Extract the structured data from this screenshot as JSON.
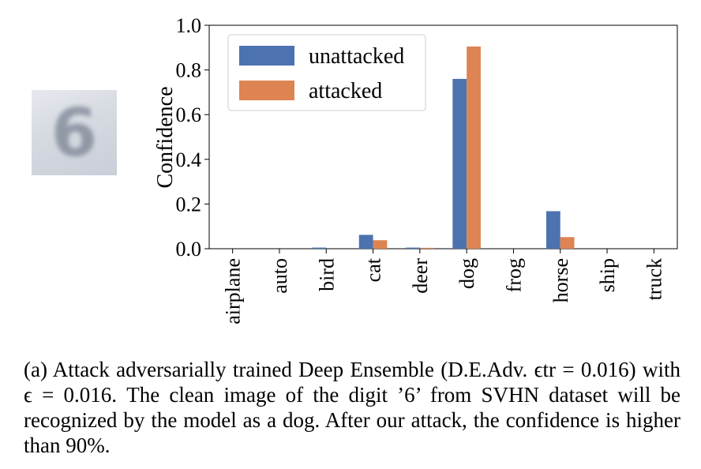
{
  "caption": "(a) Attack adversarially trained Deep Ensemble (D.E.Adv. ϵtr = 0.016) with ϵ = 0.016. The clean image of the digit ’6’ from SVHN dataset will be recognized by the model as a dog. After our attack, the confidence is higher than 90%.",
  "thumbnail": {
    "glyph": "6"
  },
  "chart_data": {
    "type": "bar",
    "title": "",
    "xlabel": "",
    "ylabel": "Confidence",
    "ylim": [
      0,
      1.0
    ],
    "yticks": [
      "0.0",
      "0.2",
      "0.4",
      "0.6",
      "0.8",
      "1.0"
    ],
    "categories": [
      "airplane",
      "auto",
      "bird",
      "cat",
      "deer",
      "dog",
      "frog",
      "horse",
      "ship",
      "truck"
    ],
    "series": [
      {
        "name": "unattacked",
        "color": "#4c72b0",
        "values": [
          0.0,
          0.0,
          0.005,
          0.062,
          0.005,
          0.76,
          0.0,
          0.168,
          0.0,
          0.0
        ]
      },
      {
        "name": "attacked",
        "color": "#dd8452",
        "values": [
          0.0,
          0.0,
          0.0,
          0.038,
          0.004,
          0.905,
          0.0,
          0.052,
          0.0,
          0.0
        ]
      }
    ],
    "legend_position": "top-left",
    "grid": false
  }
}
